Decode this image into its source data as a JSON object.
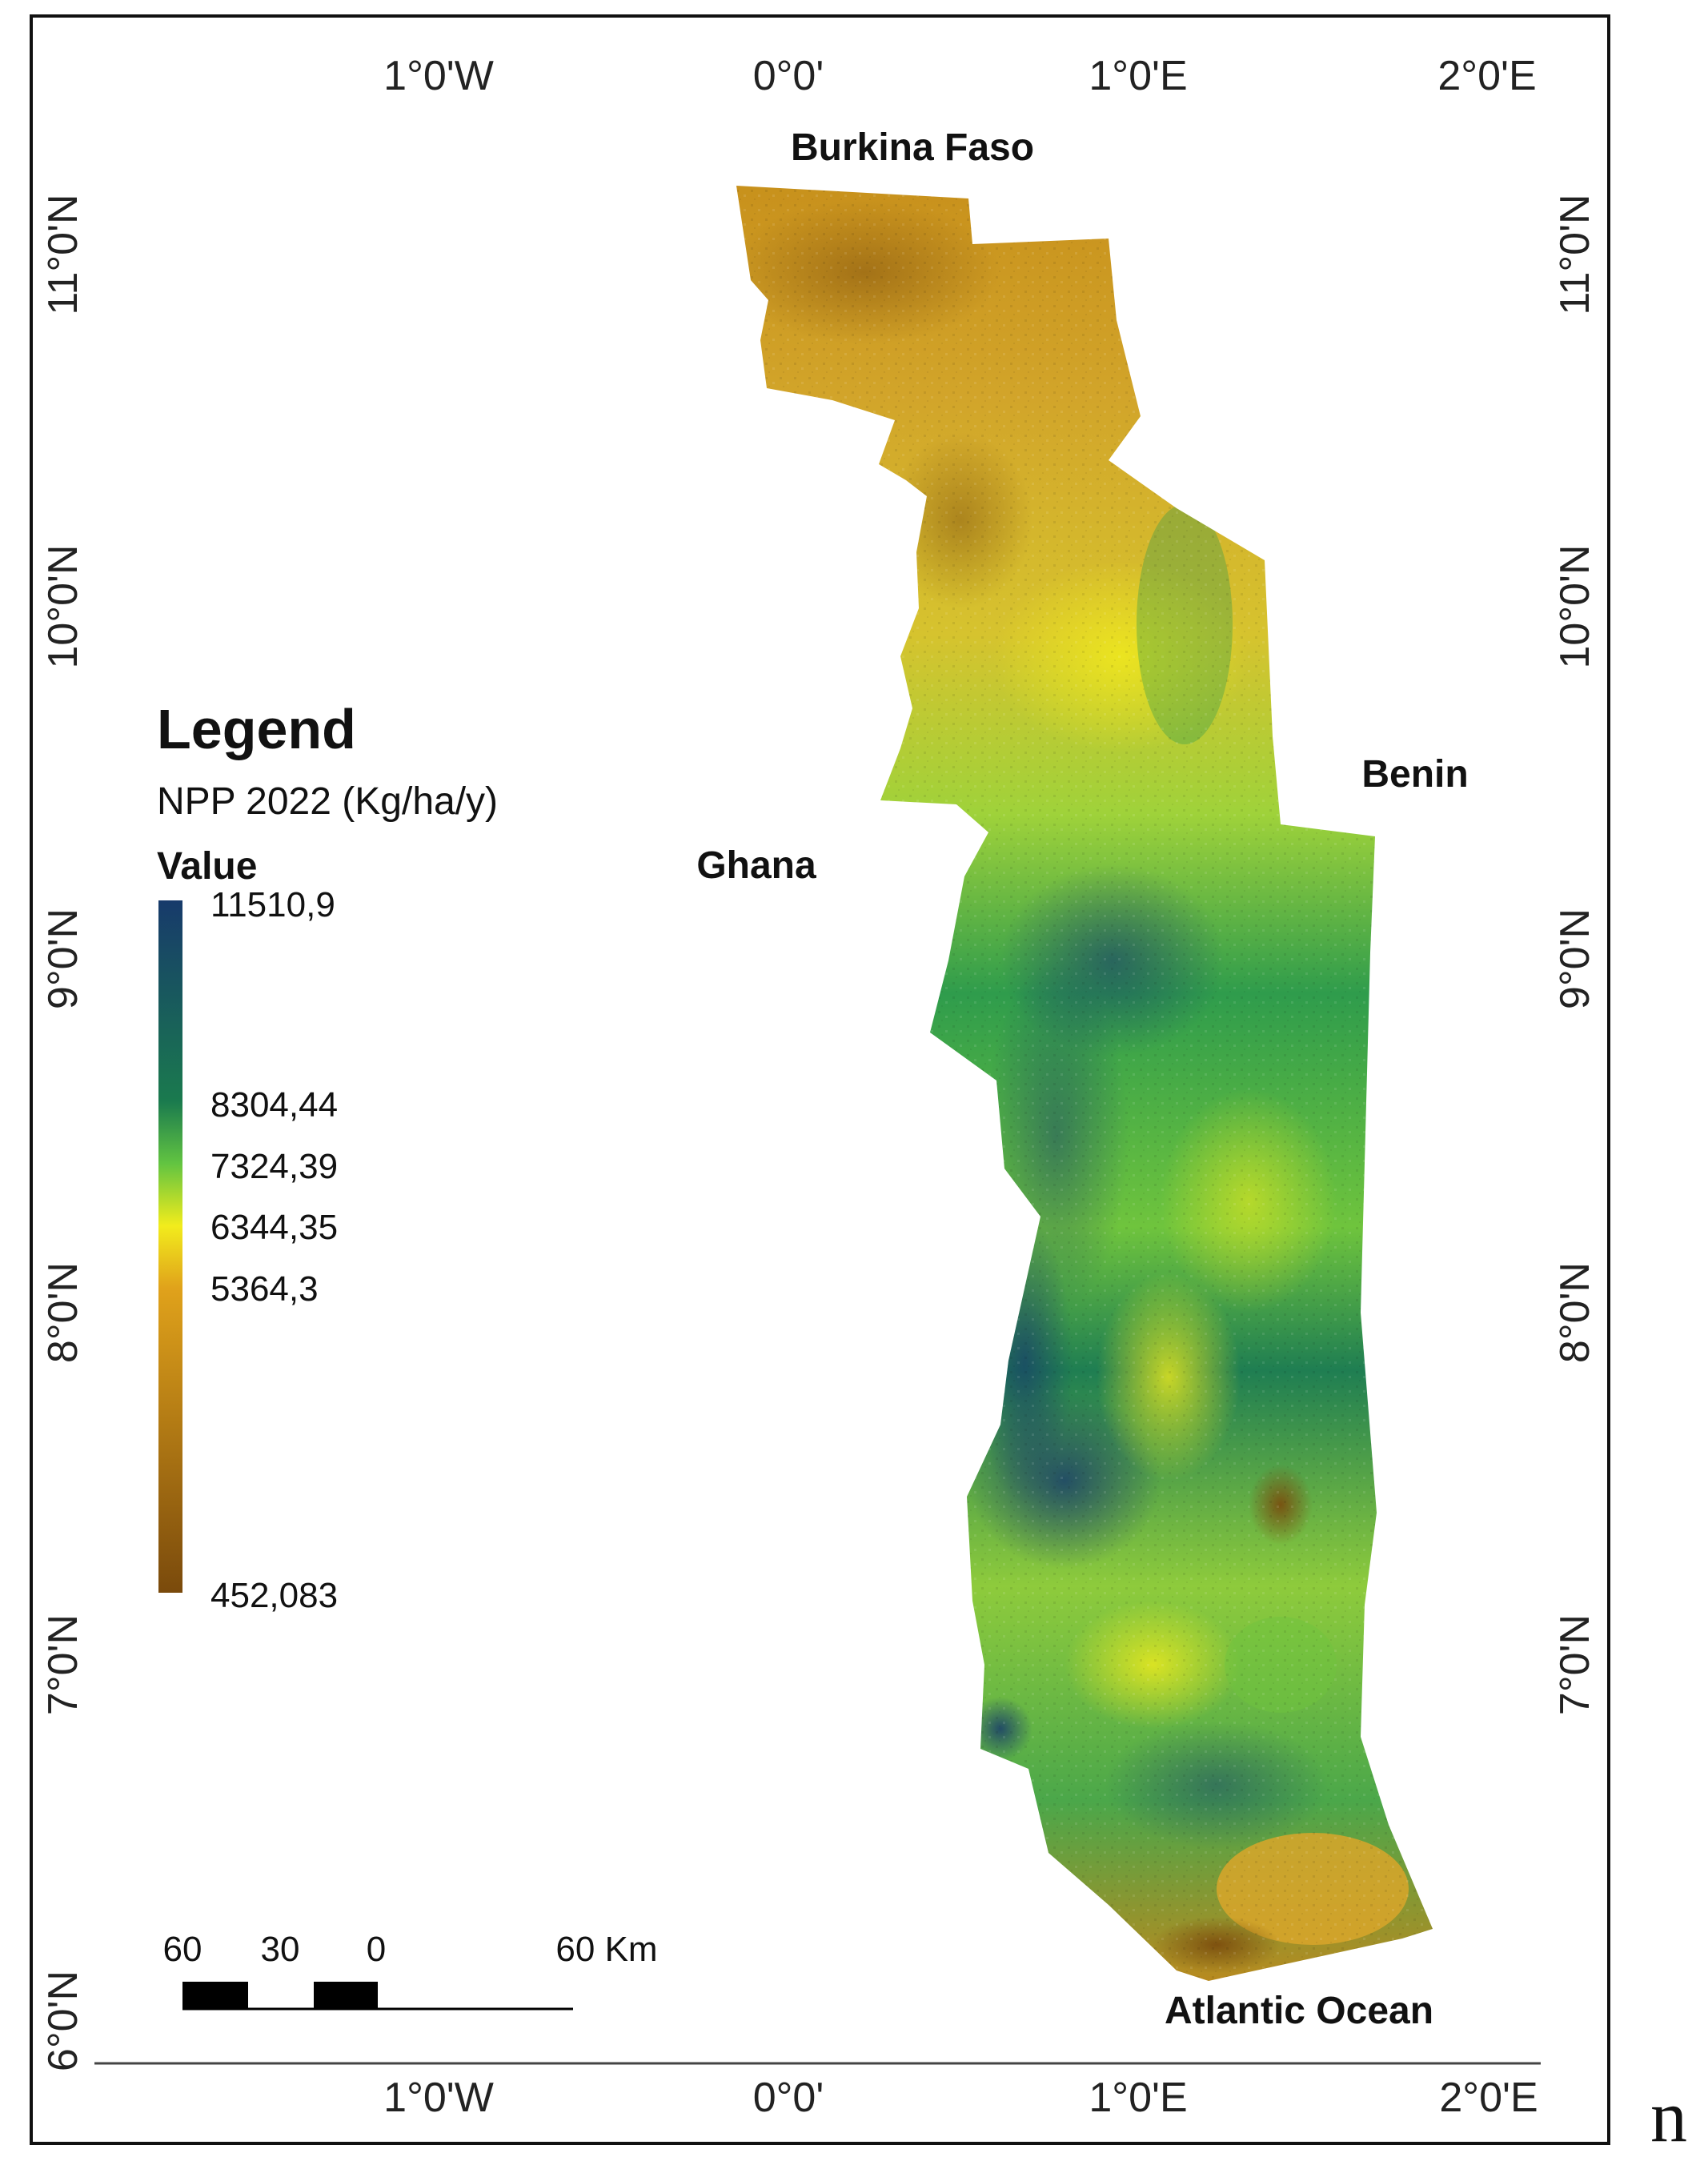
{
  "coords": {
    "top": [
      "1°0'W",
      "0°0'",
      "1°0'E",
      "2°0'E"
    ],
    "bottom": [
      "1°0'W",
      "0°0'",
      "1°0'E",
      "2°0'E"
    ],
    "left": [
      "11°0'N",
      "10°0'N",
      "9°0'N",
      "8°0'N",
      "7°0'N",
      "6°0'N"
    ],
    "right": [
      "11°0'N",
      "10°0'N",
      "9°0'N",
      "8°0'N",
      "7°0'N"
    ]
  },
  "labels": {
    "burkina_faso": "Burkina Faso",
    "benin": "Benin",
    "ghana": "Ghana",
    "atlantic_ocean": "Atlantic Ocean"
  },
  "legend": {
    "title": "Legend",
    "subtitle": "NPP 2022 (Kg/ha/y)",
    "value_header": "Value",
    "ticks": [
      "11510,9",
      "8304,44",
      "7324,39",
      "6344,35",
      "5364,3",
      "452,083"
    ]
  },
  "scale_bar": {
    "labels": [
      "60",
      "30",
      "0",
      "60 Km"
    ]
  },
  "corner_letter": "n",
  "colors": {
    "ramp_high": "#173a6b",
    "ramp_mid_high": "#1a7a4e",
    "ramp_mid": "#62c441",
    "ramp_center": "#f2ec1c",
    "ramp_mid_low": "#e0a21b",
    "ramp_low": "#7a4a0c"
  }
}
